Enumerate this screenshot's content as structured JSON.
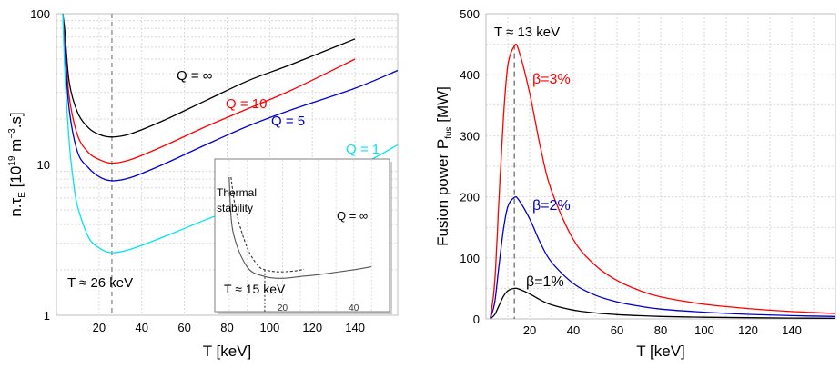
{
  "chart_data": [
    {
      "type": "line",
      "xlabel": "T [keV]",
      "ylabel": "n.τE [10^19 m^-3.s]",
      "ylabel_parts": {
        "base": "n.τ",
        "sub": "E",
        "bracket_open": " [10",
        "exp1": "19",
        "mid": " m",
        "exp2": "−3",
        "tail": ".s]"
      },
      "xlim": [
        0,
        160
      ],
      "ylim": [
        1,
        100
      ],
      "yscale": "log",
      "xticks": [
        20,
        40,
        60,
        80,
        100,
        120,
        140
      ],
      "yticks": [
        1,
        10,
        100
      ],
      "grid": true,
      "vline": {
        "x": 26,
        "label": "T ≈ 26 keV"
      },
      "series": [
        {
          "name": "Q = ∞",
          "color": "#000000",
          "x": [
            3,
            4,
            6,
            10,
            15,
            20,
            26,
            35,
            50,
            70,
            90,
            110,
            140
          ],
          "y": [
            100,
            75,
            35,
            22,
            17.5,
            15.8,
            15.2,
            16,
            19.5,
            26.5,
            36,
            46,
            68
          ]
        },
        {
          "name": "Q = 10",
          "color": "#ff0000",
          "x": [
            3,
            4,
            6,
            10,
            15,
            20,
            26,
            35,
            50,
            70,
            90,
            110,
            140
          ],
          "y": [
            100,
            62,
            28,
            15.5,
            12,
            10.8,
            10.2,
            10.8,
            13.2,
            17.8,
            23.5,
            31,
            50
          ]
        },
        {
          "name": "Q = 5",
          "color": "#0000cc",
          "x": [
            3,
            4,
            6,
            10,
            15,
            20,
            26,
            35,
            50,
            70,
            90,
            110,
            140,
            160
          ],
          "y": [
            100,
            55,
            23,
            12,
            9.5,
            8.3,
            7.8,
            8.2,
            10,
            13.5,
            18,
            23,
            32,
            42
          ]
        },
        {
          "name": "Q = 1",
          "color": "#00e5ee",
          "x": [
            3,
            4,
            6,
            8,
            10,
            15,
            20,
            26,
            35,
            50,
            70,
            90,
            110,
            140,
            160
          ],
          "y": [
            100,
            40,
            14,
            7.6,
            5.2,
            3.3,
            2.8,
            2.6,
            2.75,
            3.3,
            4.3,
            5.5,
            7,
            9.6,
            13.5
          ]
        }
      ],
      "inset": {
        "labels": [
          "Thermal",
          "stability",
          "Q = ∞",
          "T ≈ 15 keV"
        ],
        "xticks": [
          20,
          40
        ],
        "vline": 15,
        "curves": [
          {
            "name": "Q = ∞",
            "x": [
              5,
              6,
              10,
              15,
              20,
              25,
              30,
              40,
              45
            ],
            "y": [
              100,
              35,
              17,
              14,
              13.5,
              14,
              14.5,
              16,
              17
            ]
          },
          {
            "name": "Thermal stability",
            "x": [
              5.5,
              7,
              10,
              13,
              15,
              18,
              21,
              24,
              26
            ],
            "y": [
              100,
              50,
              25,
              17.5,
              16,
              15.4,
              15.4,
              15.7,
              16.2
            ]
          }
        ]
      }
    },
    {
      "type": "line",
      "xlabel": "T [keV]",
      "ylabel": "Fusion power Pfus [MW]",
      "ylabel_parts": {
        "base": "Fusion power P",
        "sub": "fus",
        "tail": " [MW]"
      },
      "xlim": [
        0,
        160
      ],
      "ylim": [
        0,
        500
      ],
      "xticks": [
        20,
        40,
        60,
        80,
        100,
        120,
        140
      ],
      "yticks": [
        0,
        100,
        200,
        300,
        400,
        500
      ],
      "grid": true,
      "vline": {
        "x": 13,
        "label": "T ≈ 13 keV"
      },
      "series": [
        {
          "name": "β=3%",
          "color": "#ff0000",
          "x": [
            2,
            4,
            6,
            8,
            10,
            13,
            15,
            20,
            25,
            30,
            40,
            50,
            60,
            70,
            80,
            100,
            120,
            140,
            160
          ],
          "y": [
            2,
            60,
            200,
            330,
            415,
            447,
            440,
            370,
            280,
            210,
            130,
            88,
            63,
            47,
            36,
            24,
            17,
            12,
            9
          ]
        },
        {
          "name": "β=2%",
          "color": "#0000cc",
          "x": [
            2,
            4,
            6,
            8,
            10,
            13,
            15,
            20,
            25,
            30,
            40,
            50,
            60,
            70,
            80,
            100,
            120,
            140,
            160
          ],
          "y": [
            1,
            27,
            89,
            147,
            184,
            199,
            195,
            164,
            124,
            93,
            58,
            39,
            28,
            21,
            16,
            11,
            7.5,
            5.3,
            4
          ]
        },
        {
          "name": "β=1%",
          "color": "#000000",
          "x": [
            2,
            4,
            6,
            8,
            10,
            13,
            15,
            20,
            25,
            30,
            40,
            50,
            60,
            70,
            80,
            100,
            120,
            140,
            160
          ],
          "y": [
            0.3,
            7,
            22,
            37,
            46,
            50,
            49,
            41,
            31,
            23,
            14.5,
            9.8,
            7,
            5.3,
            4,
            2.7,
            1.9,
            1.3,
            1
          ]
        }
      ]
    }
  ]
}
